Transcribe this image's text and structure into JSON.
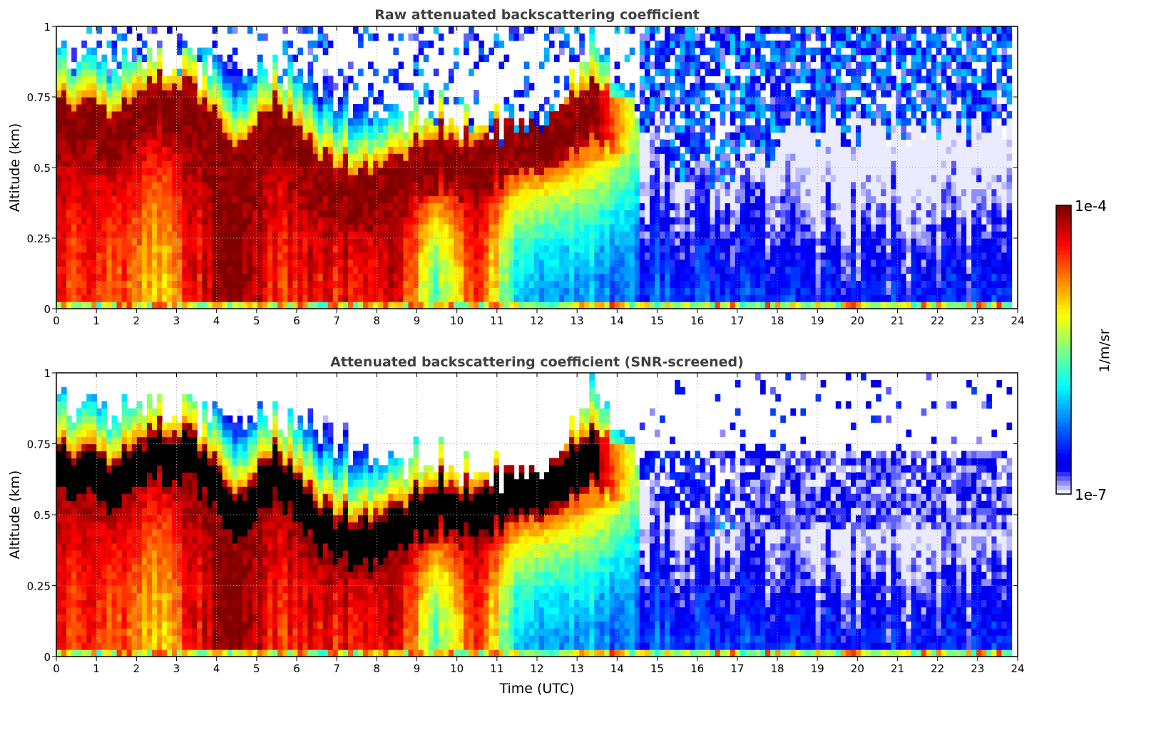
{
  "chart_data": [
    {
      "type": "heatmap",
      "title": "Raw attenuated backscattering coefficient",
      "xlabel": "",
      "ylabel": "Altitude (km)",
      "screened": false
    },
    {
      "type": "heatmap",
      "title": "Attenuated backscattering coefficient (SNR-screened)",
      "xlabel": "Time (UTC)",
      "ylabel": "Altitude (km)",
      "screened": true
    }
  ],
  "axes": {
    "xlim": [
      0,
      24
    ],
    "ylim": [
      0,
      1
    ],
    "xticks": [
      "0",
      "1",
      "2",
      "3",
      "4",
      "5",
      "6",
      "7",
      "8",
      "9",
      "10",
      "11",
      "12",
      "13",
      "14",
      "15",
      "16",
      "17",
      "18",
      "19",
      "20",
      "21",
      "22",
      "23",
      "24"
    ],
    "yticks": [
      {
        "v": 0,
        "label": "0"
      },
      {
        "v": 0.25,
        "label": "0.25"
      },
      {
        "v": 0.5,
        "label": "0.5"
      },
      {
        "v": 0.75,
        "label": "0.75"
      },
      {
        "v": 1,
        "label": "1"
      }
    ],
    "grid": true,
    "data_end_hour": 23.85
  },
  "colorbar": {
    "label": "1/m/sr",
    "max_label": "1e-4",
    "min_label": "1e-7",
    "log10_range": [
      -7,
      -4
    ],
    "colormap": "jet",
    "placement": "right"
  },
  "profiles": {
    "description_units": "log10(1/m/sr), altitudes in km, one entry per UTC hour",
    "hour": [
      0,
      1,
      2,
      3,
      4,
      5,
      6,
      7,
      8,
      9,
      10,
      11,
      12,
      13,
      14,
      15,
      16,
      17,
      18,
      19,
      20,
      21,
      22,
      23
    ],
    "near_surface_log10": [
      -4.5,
      -4.6,
      -5.0,
      -4.4,
      -4.05,
      -4.5,
      -4.4,
      -4.4,
      -4.2,
      -5.6,
      -4.4,
      -6.0,
      -6.1,
      -6.2,
      -6.3,
      -6.4,
      -6.4,
      -6.45,
      -6.5,
      -6.5,
      -6.5,
      -6.5,
      -6.5,
      -6.5
    ],
    "cloud_log10": [
      -4.0,
      -4.0,
      -4.0,
      -4.0,
      -4.0,
      -4.0,
      -4.0,
      -4.0,
      -4.0,
      -4.0,
      -4.0,
      -4.0,
      -4.0,
      -4.0,
      -5.4,
      -6.5,
      -6.5,
      -6.5,
      -6.6,
      -6.6,
      -6.6,
      -6.6,
      -6.6,
      -6.6
    ],
    "cloud_altitude_km": [
      0.65,
      0.6,
      0.72,
      0.68,
      0.45,
      0.65,
      0.45,
      0.4,
      0.45,
      0.55,
      0.5,
      0.58,
      0.62,
      0.7,
      0.62,
      0.4,
      0.4,
      0.4,
      0.4,
      0.4,
      0.4,
      0.4,
      0.4,
      0.4
    ],
    "signal_top_km": [
      0.9,
      0.85,
      0.9,
      0.85,
      0.8,
      0.85,
      0.8,
      0.75,
      0.7,
      0.72,
      0.65,
      0.65,
      0.72,
      0.95,
      0.7,
      0.5,
      0.48,
      0.52,
      0.62,
      0.65,
      0.65,
      0.65,
      0.65,
      0.62
    ]
  }
}
